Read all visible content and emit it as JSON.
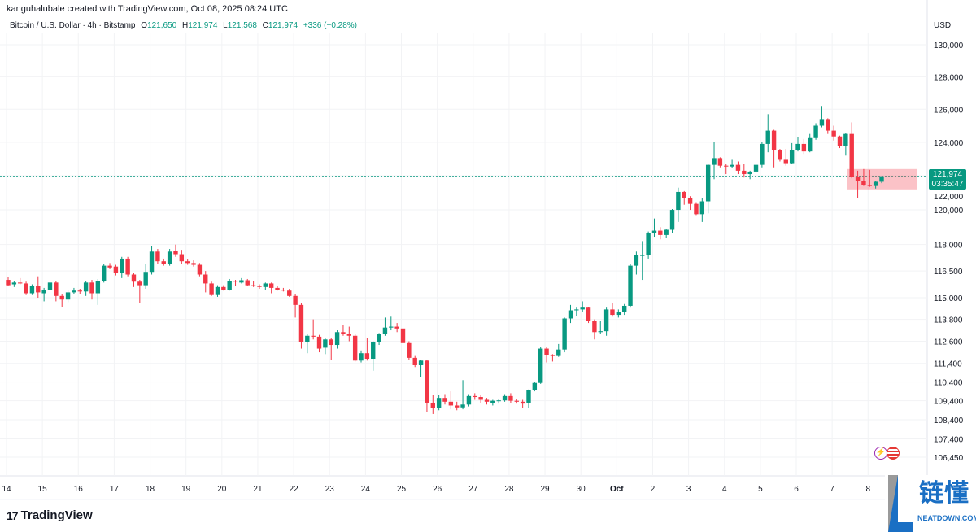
{
  "header": {
    "credit": "kanguhalubale created with TradingView.com, Oct 08, 2025 08:24 UTC"
  },
  "legend": {
    "symbol": "Bitcoin / U.S. Dollar · 4h · Bitstamp",
    "o_label": "O",
    "o": "121,650",
    "h_label": "H",
    "h": "121,974",
    "l_label": "L",
    "l": "121,568",
    "c_label": "C",
    "c": "121,974",
    "change": "+336 (+0.28%)"
  },
  "price_axis": {
    "currency": "USD"
  },
  "price_tag": {
    "price": "121,974",
    "countdown": "03:35:47"
  },
  "footer": {
    "brand": "TradingView",
    "brand_icon": "tradingview-logo-icon"
  },
  "watermark": {
    "cn": "链懂",
    "en": "NEATDOWN.COM"
  },
  "icons": [
    "lightning-event-icon",
    "us-flag-icon"
  ],
  "colors": {
    "up": "#089981",
    "down": "#F23645",
    "zone": "#F23645",
    "price_line": "#089981"
  },
  "chart_data": {
    "type": "candlestick",
    "title": "Bitcoin / U.S. Dollar · 4h · Bitstamp",
    "interval": "4h",
    "y_scale": "log",
    "ylim": [
      106450,
      130000
    ],
    "grid": true,
    "y_ticks": [
      "130,000",
      "128,000",
      "126,000",
      "124,000",
      "122,000",
      "120,000",
      "118,000",
      "116,500",
      "115,000",
      "113,800",
      "112,600",
      "111,400",
      "110,400",
      "109,400",
      "108,400",
      "107,400",
      "106,450"
    ],
    "x_ticks": [
      "14",
      "15",
      "16",
      "17",
      "18",
      "19",
      "20",
      "21",
      "22",
      "23",
      "24",
      "25",
      "26",
      "27",
      "28",
      "29",
      "30",
      "Oct",
      "2",
      "3",
      "4",
      "5",
      "6",
      "7",
      "8"
    ],
    "current_price": 121974,
    "zone": {
      "top": 122400,
      "bottom": 121200
    },
    "candle_format": [
      "open",
      "high",
      "low",
      "close"
    ],
    "candles": [
      [
        116000,
        116150,
        115650,
        115700
      ],
      [
        115750,
        115950,
        115600,
        115850
      ],
      [
        115850,
        116100,
        115750,
        115800
      ],
      [
        115800,
        115900,
        115150,
        115250
      ],
      [
        115250,
        115750,
        115150,
        115650
      ],
      [
        115650,
        116200,
        115000,
        115300
      ],
      [
        115250,
        115550,
        114800,
        115450
      ],
      [
        115450,
        116800,
        115300,
        115850
      ],
      [
        115850,
        115950,
        114800,
        115100
      ],
      [
        115100,
        115200,
        114500,
        114900
      ],
      [
        114900,
        115450,
        114750,
        115300
      ],
      [
        115300,
        115550,
        115200,
        115400
      ],
      [
        115400,
        115500,
        115200,
        115350
      ],
      [
        115350,
        115950,
        115100,
        115850
      ],
      [
        115850,
        116000,
        114900,
        115250
      ],
      [
        115250,
        116050,
        114600,
        115950
      ],
      [
        115950,
        116900,
        115850,
        116800
      ],
      [
        116800,
        116950,
        116600,
        116700
      ],
      [
        116750,
        116850,
        116250,
        116400
      ],
      [
        116400,
        117300,
        116100,
        117200
      ],
      [
        117200,
        117300,
        116200,
        116300
      ],
      [
        116300,
        116400,
        115600,
        115900
      ],
      [
        115900,
        116000,
        114700,
        115700
      ],
      [
        115700,
        116900,
        115500,
        116450
      ],
      [
        116450,
        117900,
        116300,
        117600
      ],
      [
        117600,
        117750,
        116900,
        117050
      ],
      [
        117050,
        117200,
        116800,
        116900
      ],
      [
        116900,
        117750,
        116800,
        117600
      ],
      [
        117650,
        118000,
        117300,
        117450
      ],
      [
        117450,
        117700,
        116900,
        117050
      ],
      [
        117050,
        117150,
        116850,
        116950
      ],
      [
        116950,
        117100,
        116750,
        116850
      ],
      [
        116850,
        116950,
        116200,
        116300
      ],
      [
        116300,
        116500,
        115300,
        115800
      ],
      [
        115800,
        115900,
        115100,
        115150
      ],
      [
        115150,
        115700,
        115050,
        115600
      ],
      [
        115600,
        115700,
        115400,
        115450
      ],
      [
        115450,
        116050,
        115400,
        115950
      ],
      [
        115950,
        116000,
        115650,
        115900
      ],
      [
        115850,
        116100,
        115800,
        115980
      ],
      [
        115980,
        116050,
        115650,
        115700
      ],
      [
        115700,
        115950,
        115600,
        115650
      ],
      [
        115650,
        115750,
        115500,
        115620
      ],
      [
        115600,
        115850,
        115450,
        115800
      ],
      [
        115800,
        115850,
        115250,
        115550
      ],
      [
        115550,
        115650,
        115400,
        115450
      ],
      [
        115450,
        115550,
        115350,
        115400
      ],
      [
        115400,
        115500,
        115050,
        115100
      ],
      [
        115100,
        115200,
        113900,
        114600
      ],
      [
        114600,
        114700,
        112200,
        112550
      ],
      [
        112550,
        113000,
        111950,
        112900
      ],
      [
        112900,
        113800,
        112700,
        112850
      ],
      [
        112850,
        112950,
        112000,
        112200
      ],
      [
        112250,
        112800,
        111900,
        112700
      ],
      [
        112700,
        112800,
        111600,
        112400
      ],
      [
        112400,
        113200,
        112200,
        113100
      ],
      [
        113100,
        113500,
        112900,
        113000
      ],
      [
        113000,
        113400,
        112600,
        112900
      ],
      [
        112900,
        113000,
        111500,
        111550
      ],
      [
        111550,
        112100,
        111450,
        111950
      ],
      [
        111950,
        112800,
        111550,
        111650
      ],
      [
        111650,
        112600,
        111000,
        112550
      ],
      [
        112550,
        113050,
        112400,
        113000
      ],
      [
        113000,
        113900,
        112900,
        113350
      ],
      [
        113350,
        113950,
        113200,
        113400
      ],
      [
        113400,
        113600,
        113100,
        113300
      ],
      [
        113300,
        113400,
        112400,
        112500
      ],
      [
        112500,
        112600,
        111600,
        111700
      ],
      [
        111700,
        111800,
        111200,
        111300
      ],
      [
        111300,
        111600,
        110650,
        111550
      ],
      [
        111550,
        111600,
        108800,
        109300
      ],
      [
        109300,
        109700,
        108700,
        109000
      ],
      [
        109000,
        109700,
        108900,
        109550
      ],
      [
        109550,
        109750,
        109200,
        109350
      ],
      [
        109350,
        109900,
        108950,
        109150
      ],
      [
        109150,
        109350,
        108900,
        109050
      ],
      [
        109050,
        110500,
        108950,
        109200
      ],
      [
        109200,
        109750,
        109100,
        109650
      ],
      [
        109650,
        109800,
        109450,
        109600
      ],
      [
        109600,
        109700,
        109300,
        109450
      ],
      [
        109450,
        109550,
        109200,
        109350
      ],
      [
        109300,
        109450,
        109150,
        109400
      ],
      [
        109400,
        109500,
        109250,
        109420
      ],
      [
        109420,
        109750,
        109350,
        109650
      ],
      [
        109650,
        109800,
        109300,
        109400
      ],
      [
        109400,
        109500,
        109250,
        109350
      ],
      [
        109350,
        109450,
        109000,
        109250
      ],
      [
        109300,
        110000,
        109000,
        109950
      ],
      [
        109950,
        110400,
        109900,
        110350
      ],
      [
        110350,
        112300,
        110300,
        112200
      ],
      [
        112200,
        112300,
        111450,
        111850
      ],
      [
        111850,
        111900,
        111500,
        111800
      ],
      [
        111800,
        112450,
        111750,
        112150
      ],
      [
        112150,
        113900,
        112000,
        113850
      ],
      [
        113850,
        114600,
        113600,
        114300
      ],
      [
        114300,
        114450,
        114000,
        114350
      ],
      [
        114350,
        114800,
        114200,
        114450
      ],
      [
        114450,
        114500,
        113600,
        113700
      ],
      [
        113700,
        113800,
        112700,
        113100
      ],
      [
        113100,
        113700,
        113000,
        113150
      ],
      [
        113150,
        114450,
        112900,
        114350
      ],
      [
        114350,
        114700,
        113950,
        114050
      ],
      [
        114050,
        114350,
        113900,
        114200
      ],
      [
        114200,
        114650,
        114050,
        114550
      ],
      [
        114550,
        116900,
        114450,
        116800
      ],
      [
        116800,
        117600,
        116300,
        117400
      ],
      [
        117400,
        118200,
        116000,
        117400
      ],
      [
        117400,
        118750,
        117200,
        118650
      ],
      [
        118650,
        119500,
        118450,
        118800
      ],
      [
        118800,
        119000,
        118300,
        118550
      ],
      [
        118550,
        118900,
        118400,
        118850
      ],
      [
        118850,
        120050,
        118650,
        120000
      ],
      [
        120000,
        121300,
        119300,
        121050
      ],
      [
        121050,
        121100,
        120300,
        120700
      ],
      [
        120700,
        120800,
        120000,
        120350
      ],
      [
        120350,
        120450,
        119700,
        119750
      ],
      [
        119750,
        120700,
        119300,
        120500
      ],
      [
        120500,
        122700,
        119800,
        122650
      ],
      [
        122650,
        124000,
        121800,
        123050
      ],
      [
        123050,
        123100,
        122500,
        122600
      ],
      [
        122600,
        122700,
        122100,
        122550
      ],
      [
        122550,
        122950,
        122450,
        122650
      ],
      [
        122650,
        122850,
        122100,
        122300
      ],
      [
        122300,
        122700,
        121900,
        122100
      ],
      [
        122100,
        122300,
        121800,
        122250
      ],
      [
        122250,
        122700,
        122150,
        122650
      ],
      [
        122650,
        124000,
        122500,
        123900
      ],
      [
        123900,
        125700,
        123400,
        124700
      ],
      [
        124700,
        124750,
        122500,
        123550
      ],
      [
        123550,
        123600,
        122850,
        122950
      ],
      [
        122950,
        123600,
        122600,
        122750
      ],
      [
        122750,
        123950,
        122700,
        123550
      ],
      [
        123550,
        124300,
        123450,
        123900
      ],
      [
        123900,
        124200,
        123300,
        123450
      ],
      [
        123450,
        124500,
        123400,
        124250
      ],
      [
        124250,
        125150,
        124150,
        125000
      ],
      [
        125000,
        126200,
        124900,
        125400
      ],
      [
        125400,
        125450,
        124500,
        124700
      ],
      [
        124700,
        125000,
        124100,
        124350
      ],
      [
        124350,
        124400,
        123650,
        123750
      ],
      [
        123750,
        124550,
        123200,
        124500
      ],
      [
        124500,
        125200,
        121850,
        121950
      ],
      [
        121950,
        122300,
        120700,
        121700
      ],
      [
        121700,
        122400,
        121400,
        121450
      ],
      [
        121450,
        122350,
        121350,
        121400
      ],
      [
        121400,
        121700,
        121250,
        121650
      ],
      [
        121650,
        121974,
        121568,
        121974
      ]
    ]
  }
}
